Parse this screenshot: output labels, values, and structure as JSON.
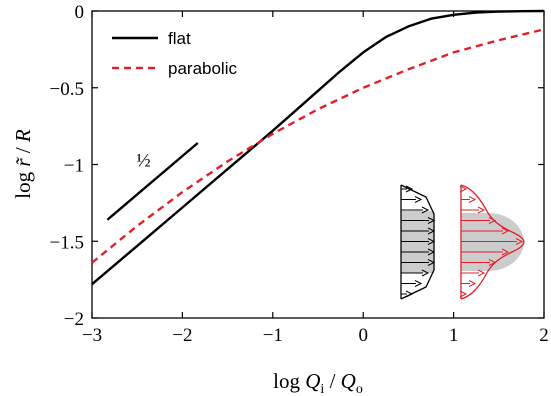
{
  "chart_data": {
    "type": "line",
    "xlabel": {
      "pre": "log ",
      "var": "Q",
      "sub": "i",
      "mid": " / ",
      "var2": "Q",
      "sub2": "o"
    },
    "ylabel": {
      "pre": "log ",
      "var": "r̃",
      "mid": " / ",
      "var2": "R"
    },
    "xlim": [
      -3,
      2
    ],
    "ylim": [
      -2,
      0
    ],
    "xticks": [
      -3,
      -2,
      -1,
      0,
      1,
      2
    ],
    "xtick_labels": [
      "−3",
      "−2",
      "−1",
      "0",
      "1",
      "2"
    ],
    "yticks": [
      0,
      -0.5,
      -1,
      -1.5,
      -2
    ],
    "ytick_labels": [
      "0",
      "−0.5",
      "−1",
      "−1.5",
      "−2"
    ],
    "grid": false,
    "legend_position": "top-left",
    "series": [
      {
        "name": "flat",
        "color": "#000000",
        "dash": "solid",
        "x": [
          -3,
          -2.5,
          -2,
          -1.5,
          -1,
          -0.75,
          -0.5,
          -0.25,
          0,
          0.25,
          0.5,
          0.75,
          1,
          1.25,
          1.5,
          1.75,
          2
        ],
        "y": [
          -1.78,
          -1.53,
          -1.28,
          -1.03,
          -0.78,
          -0.65,
          -0.52,
          -0.39,
          -0.27,
          -0.17,
          -0.1,
          -0.05,
          -0.025,
          -0.01,
          -0.004,
          -0.001,
          0
        ]
      },
      {
        "name": "parabolic",
        "color": "#e0202a",
        "dash": "dashed",
        "x": [
          -3,
          -2.5,
          -2,
          -1.5,
          -1,
          -0.5,
          0,
          0.5,
          1,
          1.5,
          2
        ],
        "y": [
          -1.64,
          -1.4,
          -1.18,
          -0.98,
          -0.8,
          -0.64,
          -0.5,
          -0.38,
          -0.27,
          -0.19,
          -0.12
        ]
      }
    ],
    "slope_annotation": {
      "label": "½",
      "x": [
        -2.83,
        -1.83
      ],
      "y": [
        -1.36,
        -0.86
      ]
    },
    "colors": {
      "flat": "#000000",
      "parabolic": "#e0202a",
      "profile_fill": "#cccccc"
    }
  }
}
